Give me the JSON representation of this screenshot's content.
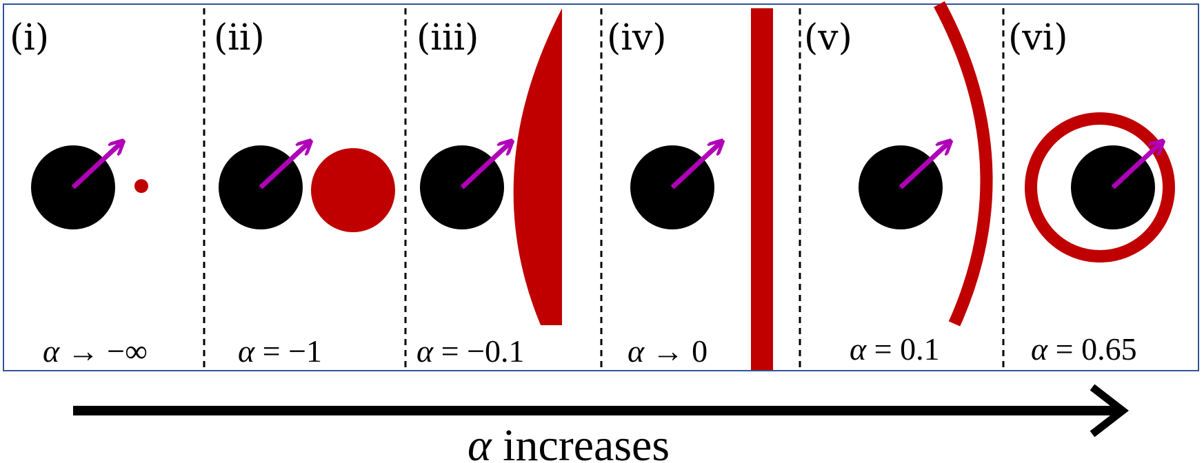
{
  "panels": [
    {
      "label": "(i)",
      "symbol": "α",
      "relation": " → −∞"
    },
    {
      "label": "(ii)",
      "symbol": "α",
      "relation": " = −1"
    },
    {
      "label": "(iii)",
      "symbol": "α",
      "relation": " = −0.1"
    },
    {
      "label": "(iv)",
      "symbol": "α",
      "relation": " → 0"
    },
    {
      "label": "(v)",
      "symbol": "α",
      "relation": " = 0.1"
    },
    {
      "label": "(vi)",
      "symbol": "α",
      "relation": " = 0.65"
    }
  ],
  "axis": {
    "symbol": "α",
    "text": " increases"
  },
  "colors": {
    "particle": "#000000",
    "spin_arrow": "#b000b8",
    "shape": "#c00000",
    "frame": "#2f5496",
    "divider": "#000000"
  }
}
